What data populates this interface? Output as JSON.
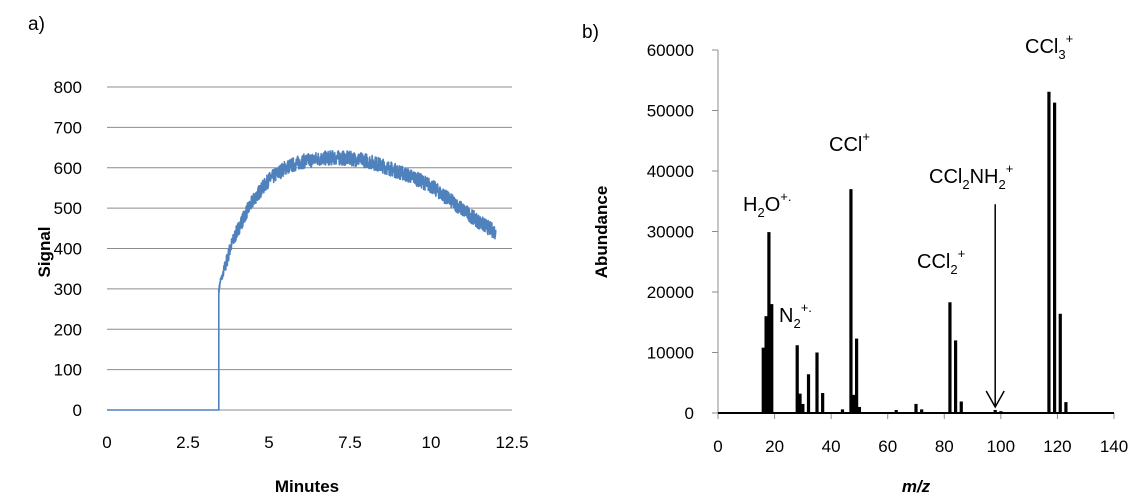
{
  "chart_data": [
    {
      "panel_label": "a)",
      "type": "line",
      "xlabel": "Minutes",
      "ylabel": "Signal",
      "xlim": [
        0,
        12.5
      ],
      "ylim": [
        0,
        800
      ],
      "x_ticks": [
        "0",
        "2.5",
        "5",
        "7.5",
        "10",
        "12.5"
      ],
      "y_ticks": [
        "0",
        "100",
        "200",
        "300",
        "400",
        "500",
        "600",
        "700",
        "800"
      ],
      "grid": "horizontal",
      "color": "#4f81bd",
      "series": [
        {
          "x": [
            0,
            3.45,
            3.46,
            3.5,
            3.6,
            3.8,
            4.0,
            4.3,
            4.6,
            5.0,
            5.5,
            6.0,
            6.5,
            7.0,
            7.5,
            8.0,
            8.5,
            9.0,
            9.5,
            10.0,
            10.5,
            11.0,
            11.5,
            12.0
          ],
          "y": [
            0,
            0,
            300,
            320,
            340,
            400,
            440,
            490,
            530,
            570,
            600,
            615,
            622,
            625,
            623,
            618,
            605,
            590,
            575,
            555,
            525,
            495,
            465,
            440
          ]
        }
      ]
    },
    {
      "panel_label": "b)",
      "type": "bar",
      "xlabel": "m/z",
      "ylabel": "Abundance",
      "xlim": [
        0,
        140
      ],
      "ylim": [
        0,
        60000
      ],
      "x_ticks": [
        "0",
        "20",
        "40",
        "60",
        "80",
        "100",
        "120",
        "140"
      ],
      "y_ticks": [
        "0",
        "10000",
        "20000",
        "30000",
        "40000",
        "50000",
        "60000"
      ],
      "grid": "none",
      "color": "#000000",
      "points": [
        {
          "x": 16,
          "y": 10800
        },
        {
          "x": 17,
          "y": 16000
        },
        {
          "x": 18,
          "y": 29900
        },
        {
          "x": 19,
          "y": 18000
        },
        {
          "x": 28,
          "y": 11200
        },
        {
          "x": 29,
          "y": 3200
        },
        {
          "x": 30,
          "y": 1500
        },
        {
          "x": 32,
          "y": 6400
        },
        {
          "x": 35,
          "y": 10000
        },
        {
          "x": 37,
          "y": 3300
        },
        {
          "x": 44,
          "y": 600
        },
        {
          "x": 47,
          "y": 37000
        },
        {
          "x": 48,
          "y": 3000
        },
        {
          "x": 49,
          "y": 12300
        },
        {
          "x": 50,
          "y": 1000
        },
        {
          "x": 63,
          "y": 500
        },
        {
          "x": 70,
          "y": 1500
        },
        {
          "x": 72,
          "y": 600
        },
        {
          "x": 82,
          "y": 18300
        },
        {
          "x": 84,
          "y": 12000
        },
        {
          "x": 86,
          "y": 1900
        },
        {
          "x": 98,
          "y": 500
        },
        {
          "x": 100,
          "y": 300
        },
        {
          "x": 117,
          "y": 53100
        },
        {
          "x": 119,
          "y": 51300
        },
        {
          "x": 121,
          "y": 16400
        },
        {
          "x": 123,
          "y": 1800
        }
      ],
      "annotations": [
        {
          "text": "H",
          "sub": "2",
          "rest": "O",
          "sup": "+.",
          "x": 18
        },
        {
          "text": "N",
          "sub": "2",
          "rest": "",
          "sup": "+.",
          "x": 22
        },
        {
          "text": "CCl",
          "sub": "",
          "rest": "",
          "sup": "+",
          "x": 47
        },
        {
          "text": "CCl",
          "sub": "2",
          "rest": "",
          "sup": "+",
          "x": 82
        },
        {
          "text": "CCl",
          "sub": "2",
          "rest": "NH",
          "sub2": "2",
          "sup": "+",
          "x": 98
        },
        {
          "text": "CCl",
          "sub": "3",
          "rest": "",
          "sup": "+",
          "x": 118
        }
      ],
      "arrow": {
        "x": 98,
        "from_y": 34500,
        "to_y": 500
      }
    }
  ]
}
